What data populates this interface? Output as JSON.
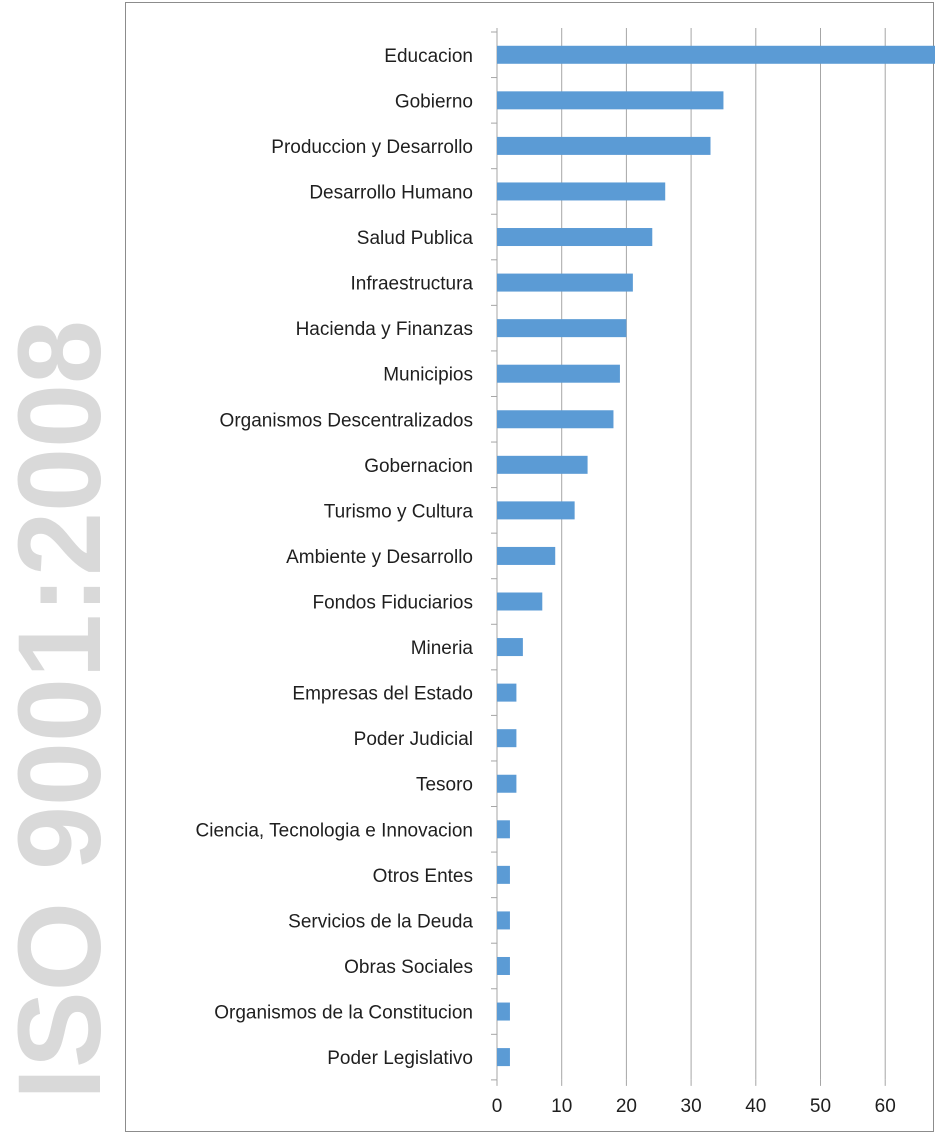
{
  "watermark": {
    "text": "ISO 9001:2008",
    "color": "#d9d9d9"
  },
  "chart_data": {
    "type": "bar",
    "orientation": "horizontal",
    "categories": [
      "Educacion",
      "Gobierno",
      "Produccion y Desarrollo",
      "Desarrollo Humano",
      "Salud Publica",
      "Infraestructura",
      "Hacienda y Finanzas",
      "Municipios",
      "Organismos Descentralizados",
      "Gobernacion",
      "Turismo y Cultura",
      "Ambiente y  Desarrollo",
      "Fondos Fiduciarios",
      "Mineria",
      "Empresas del Estado",
      "Poder Judicial",
      "Tesoro",
      "Ciencia, Tecnologia e Innovacion",
      "Otros Entes",
      "Servicios de la Deuda",
      "Obras Sociales",
      "Organismos de la Constitucion",
      "Poder Legislativo"
    ],
    "values": [
      69,
      35,
      33,
      26,
      24,
      21,
      20,
      19,
      18,
      14,
      12,
      9,
      7,
      4,
      3,
      3,
      3,
      2,
      2,
      2,
      2,
      2,
      2
    ],
    "xlim": [
      0,
      80
    ],
    "xticks": [
      0,
      10,
      20,
      30,
      40,
      50,
      60,
      70,
      80
    ],
    "grid": "vertical",
    "bar_color": "#5b9bd5",
    "grid_color": "#a6a6a6",
    "title": "",
    "xlabel": "",
    "ylabel": ""
  }
}
